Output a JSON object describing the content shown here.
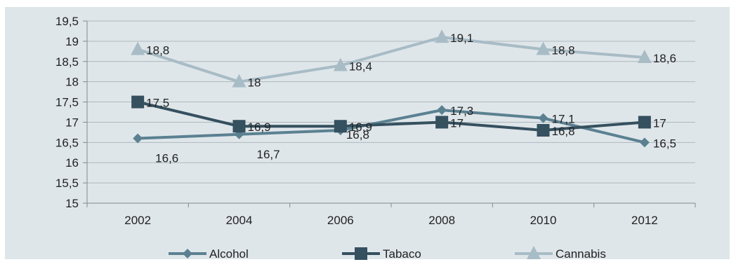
{
  "chart_data": {
    "type": "line",
    "categories": [
      "2002",
      "2004",
      "2006",
      "2008",
      "2010",
      "2012"
    ],
    "ylim": [
      15,
      19.5
    ],
    "ytick_labels": [
      "15",
      "15,5",
      "16",
      "16,5",
      "17",
      "17,5",
      "18",
      "18,5",
      "19",
      "19,5"
    ],
    "grid": true,
    "legend_position": "bottom",
    "series": [
      {
        "name": "Alcohol",
        "marker": "diamond",
        "color": "#5b8191",
        "values": [
          16.6,
          16.7,
          16.8,
          17.3,
          17.1,
          16.5
        ],
        "labels": [
          "16,6",
          "16,7",
          "16,8",
          "17,3",
          "17,1",
          "16,5"
        ]
      },
      {
        "name": "Tabaco",
        "marker": "square",
        "color": "#35505f",
        "values": [
          17.5,
          16.9,
          16.9,
          17,
          16.8,
          17
        ],
        "labels": [
          "17,5",
          "16,9",
          "16,9",
          "17",
          "16,8",
          "17"
        ]
      },
      {
        "name": "Cannabis",
        "marker": "triangle",
        "color": "#a8bcc6",
        "values": [
          18.8,
          18,
          18.4,
          19.1,
          18.8,
          18.6
        ],
        "labels": [
          "18,8",
          "18",
          "18,4",
          "19,1",
          "18,8",
          "18,6"
        ]
      }
    ]
  },
  "colors": {
    "background": "#dfe6ea",
    "gridline": "#aeb8bd",
    "axis": "#7f8a90"
  }
}
